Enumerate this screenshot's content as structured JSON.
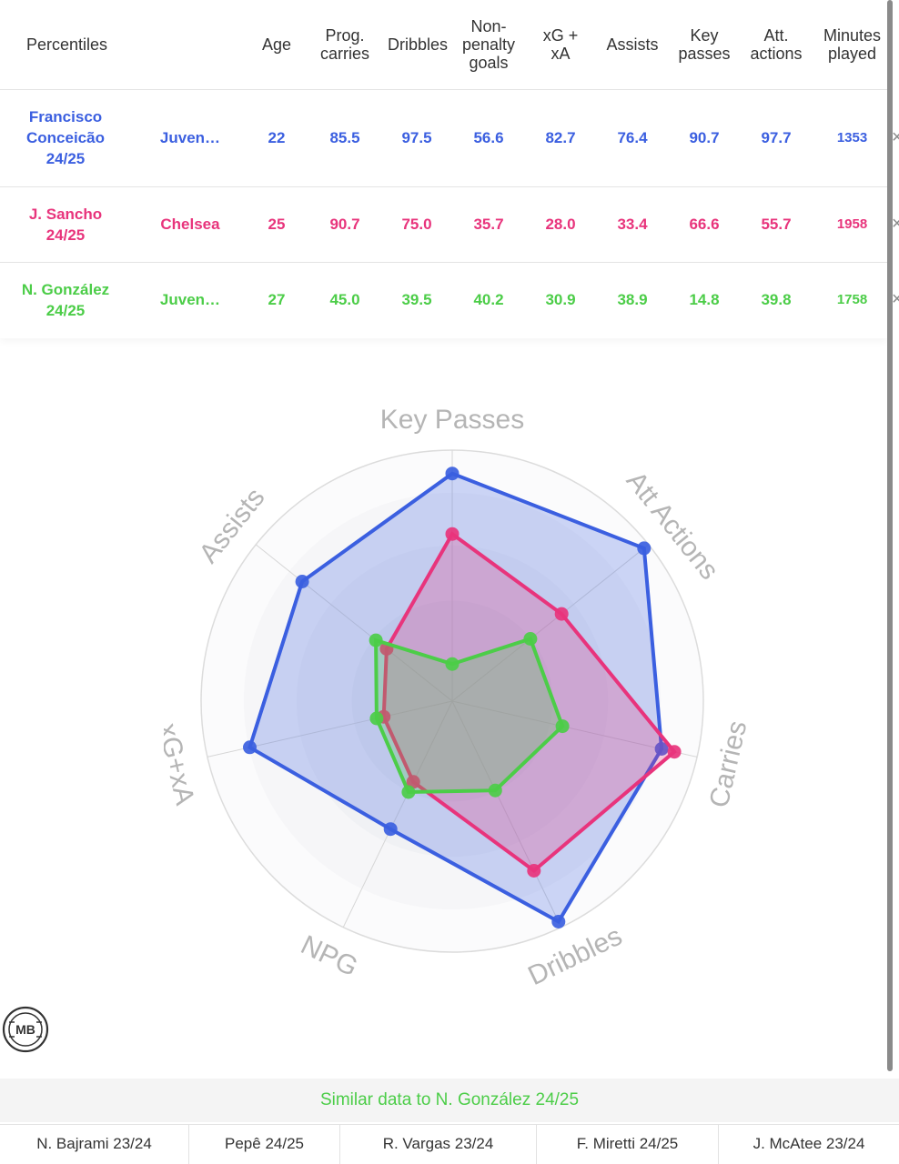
{
  "table": {
    "headers": {
      "percentiles": "Percentiles",
      "age": "Age",
      "prog_carries": [
        "Prog.",
        "carries"
      ],
      "dribbles": "Dribbles",
      "npg": [
        "Non-",
        "penalty",
        "goals"
      ],
      "xgxa": [
        "xG +",
        "xA"
      ],
      "assists": "Assists",
      "key_passes": [
        "Key",
        "passes"
      ],
      "att_actions": [
        "Att.",
        "actions"
      ],
      "minutes": [
        "Minutes",
        "played"
      ]
    },
    "rows": [
      {
        "name": [
          "Francisco",
          "Conceicão",
          "24/25"
        ],
        "team": "Juven…",
        "age": "22",
        "prog_carries": "85.5",
        "dribbles": "97.5",
        "npg": "56.6",
        "xgxa": "82.7",
        "assists": "76.4",
        "key_passes": "90.7",
        "att_actions": "97.7",
        "minutes": "1353"
      },
      {
        "name": [
          "J. Sancho",
          "24/25"
        ],
        "team": "Chelsea",
        "age": "25",
        "prog_carries": "90.7",
        "dribbles": "75.0",
        "npg": "35.7",
        "xgxa": "28.0",
        "assists": "33.4",
        "key_passes": "66.6",
        "att_actions": "55.7",
        "minutes": "1958"
      },
      {
        "name": [
          "N. González",
          "24/25"
        ],
        "team": "Juven…",
        "age": "27",
        "prog_carries": "45.0",
        "dribbles": "39.5",
        "npg": "40.2",
        "xgxa": "30.9",
        "assists": "38.9",
        "key_passes": "14.8",
        "att_actions": "39.8",
        "minutes": "1758"
      }
    ],
    "remove_icon": "×"
  },
  "chart_data": {
    "type": "radar",
    "axes": [
      "Key Passes",
      "Att Actions",
      "Carries",
      "Dribbles",
      "NPG",
      "xG+xA",
      "Assists"
    ],
    "range": [
      0,
      100
    ],
    "series": [
      {
        "name": "Francisco Conceicão 24/25",
        "color": "#3b5fe0",
        "values": [
          90.7,
          97.7,
          85.5,
          97.5,
          56.6,
          82.7,
          76.4
        ]
      },
      {
        "name": "J. Sancho 24/25",
        "color": "#e8347c",
        "values": [
          66.6,
          55.7,
          90.7,
          75.0,
          35.7,
          28.0,
          33.4
        ]
      },
      {
        "name": "N. González 24/25",
        "color": "#4ccd48",
        "values": [
          14.8,
          39.8,
          45.0,
          39.5,
          40.2,
          30.9,
          38.9
        ]
      }
    ]
  },
  "logo": {
    "text": "MB"
  },
  "similar": {
    "title": "Similar data to N. González 24/25",
    "items": [
      "N. Bajrami 23/24",
      "Pepê 24/25",
      "R. Vargas 23/24",
      "F. Miretti 24/25",
      "J. McAtee 23/24"
    ]
  },
  "colors": {
    "blue": "#3b5fe0",
    "pink": "#e8347c",
    "green": "#4ccd48"
  }
}
